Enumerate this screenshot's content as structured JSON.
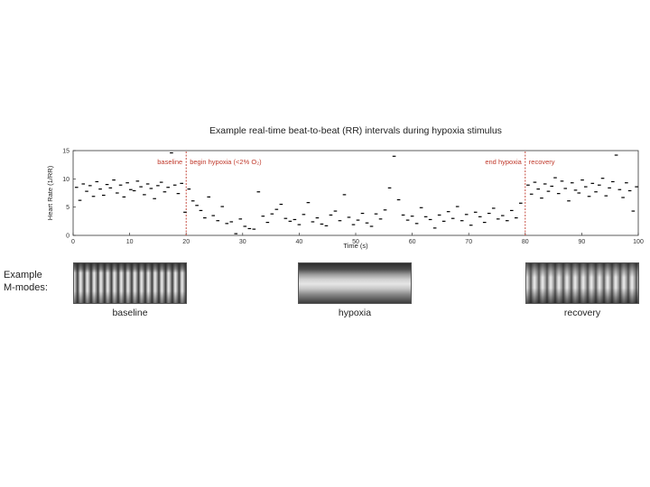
{
  "chart_data": {
    "type": "scatter",
    "title": "Example real-time beat-to-beat (RR) intervals during hypoxia stimulus",
    "xlabel": "Time (s)",
    "ylabel": "Heart Rate (1/RR)",
    "xlim": [
      0,
      100
    ],
    "ylim": [
      0,
      15
    ],
    "xticks": [
      0,
      10,
      20,
      30,
      40,
      50,
      60,
      70,
      80,
      90,
      100
    ],
    "yticks": [
      0,
      5,
      10,
      15
    ],
    "grid": false,
    "legend": "none",
    "marker_color": "#000000",
    "annotation_color": "#c0392b",
    "vlines": [
      {
        "x": 20,
        "left_label": "baseline",
        "right_label": "begin hypoxia (<2% O₂)"
      },
      {
        "x": 80,
        "left_label": "end hypoxia",
        "right_label": "recovery"
      }
    ],
    "series": [
      {
        "x": [
          0.6,
          1.2,
          1.8,
          2.4,
          3.0,
          3.6,
          4.2,
          4.8,
          5.4,
          6.0,
          6.6,
          7.2,
          7.8,
          8.4,
          9.0,
          9.6,
          10.2,
          10.8,
          11.4,
          12.0,
          12.6,
          13.2,
          13.8,
          14.4,
          15.0,
          15.6,
          16.2,
          16.8,
          17.4,
          18.0,
          18.6,
          19.2,
          19.8,
          20.5,
          21.2,
          21.9,
          22.6,
          23.3,
          24.0,
          24.8,
          25.6,
          26.4,
          27.2,
          28.0,
          28.8,
          29.6,
          30.4,
          31.2,
          32.0,
          32.8,
          33.6,
          34.4,
          35.2,
          36.0,
          36.8,
          37.6,
          38.4,
          39.2,
          40.0,
          40.8,
          41.6,
          42.4,
          43.2,
          44.0,
          44.8,
          45.6,
          46.4,
          47.2,
          48.0,
          48.8,
          49.6,
          50.4,
          51.2,
          52.0,
          52.8,
          53.6,
          54.4,
          55.2,
          56.0,
          56.8,
          57.6,
          58.4,
          59.2,
          60.0,
          60.8,
          61.6,
          62.4,
          63.2,
          64.0,
          64.8,
          65.6,
          66.4,
          67.2,
          68.0,
          68.8,
          69.6,
          70.4,
          71.2,
          72.0,
          72.8,
          73.6,
          74.4,
          75.2,
          76.0,
          76.8,
          77.6,
          78.4,
          79.2,
          80.5,
          81.1,
          81.7,
          82.3,
          82.9,
          83.5,
          84.1,
          84.7,
          85.3,
          85.9,
          86.5,
          87.1,
          87.7,
          88.3,
          88.9,
          89.5,
          90.1,
          90.7,
          91.3,
          91.9,
          92.5,
          93.1,
          93.7,
          94.3,
          94.9,
          95.5,
          96.1,
          96.7,
          97.3,
          97.9,
          98.5,
          99.1,
          99.7
        ],
        "y": [
          8.5,
          6.2,
          9.1,
          7.8,
          8.8,
          6.9,
          9.5,
          8.2,
          7.1,
          9.0,
          8.4,
          9.8,
          7.5,
          8.9,
          6.8,
          9.3,
          8.1,
          7.9,
          9.6,
          8.6,
          7.2,
          9.1,
          8.3,
          6.5,
          8.8,
          9.4,
          7.7,
          8.5,
          14.6,
          8.9,
          7.4,
          9.2,
          4.1,
          8.2,
          6.1,
          5.3,
          4.4,
          3.1,
          6.8,
          3.5,
          2.6,
          5.1,
          2.1,
          2.4,
          0.3,
          2.9,
          1.6,
          1.2,
          1.1,
          7.7,
          3.4,
          2.3,
          3.8,
          4.6,
          5.5,
          3.0,
          2.5,
          2.8,
          1.9,
          3.7,
          5.8,
          2.4,
          3.1,
          2.0,
          1.7,
          3.6,
          4.3,
          2.6,
          7.2,
          3.2,
          1.9,
          2.7,
          3.9,
          2.2,
          1.6,
          3.8,
          2.9,
          4.5,
          8.4,
          14.0,
          6.3,
          3.6,
          2.7,
          3.4,
          2.1,
          4.9,
          3.3,
          2.8,
          1.3,
          3.6,
          2.5,
          4.2,
          3.0,
          5.1,
          2.6,
          3.7,
          1.8,
          4.1,
          3.3,
          2.3,
          3.9,
          4.8,
          2.9,
          3.5,
          2.6,
          4.4,
          3.1,
          5.7,
          8.9,
          7.3,
          9.4,
          8.2,
          6.6,
          9.1,
          7.8,
          8.7,
          10.2,
          7.4,
          9.6,
          8.3,
          6.1,
          9.3,
          8.0,
          7.5,
          9.8,
          8.6,
          6.9,
          9.2,
          7.7,
          8.9,
          10.1,
          7.0,
          8.4,
          9.5,
          14.2,
          8.1,
          6.7,
          9.3,
          7.9,
          4.3,
          8.6
        ]
      }
    ]
  },
  "mmodes": {
    "heading_line1": "Example",
    "heading_line2": "M-modes:",
    "panels": [
      {
        "label": "baseline"
      },
      {
        "label": "hypoxia"
      },
      {
        "label": "recovery"
      }
    ]
  }
}
